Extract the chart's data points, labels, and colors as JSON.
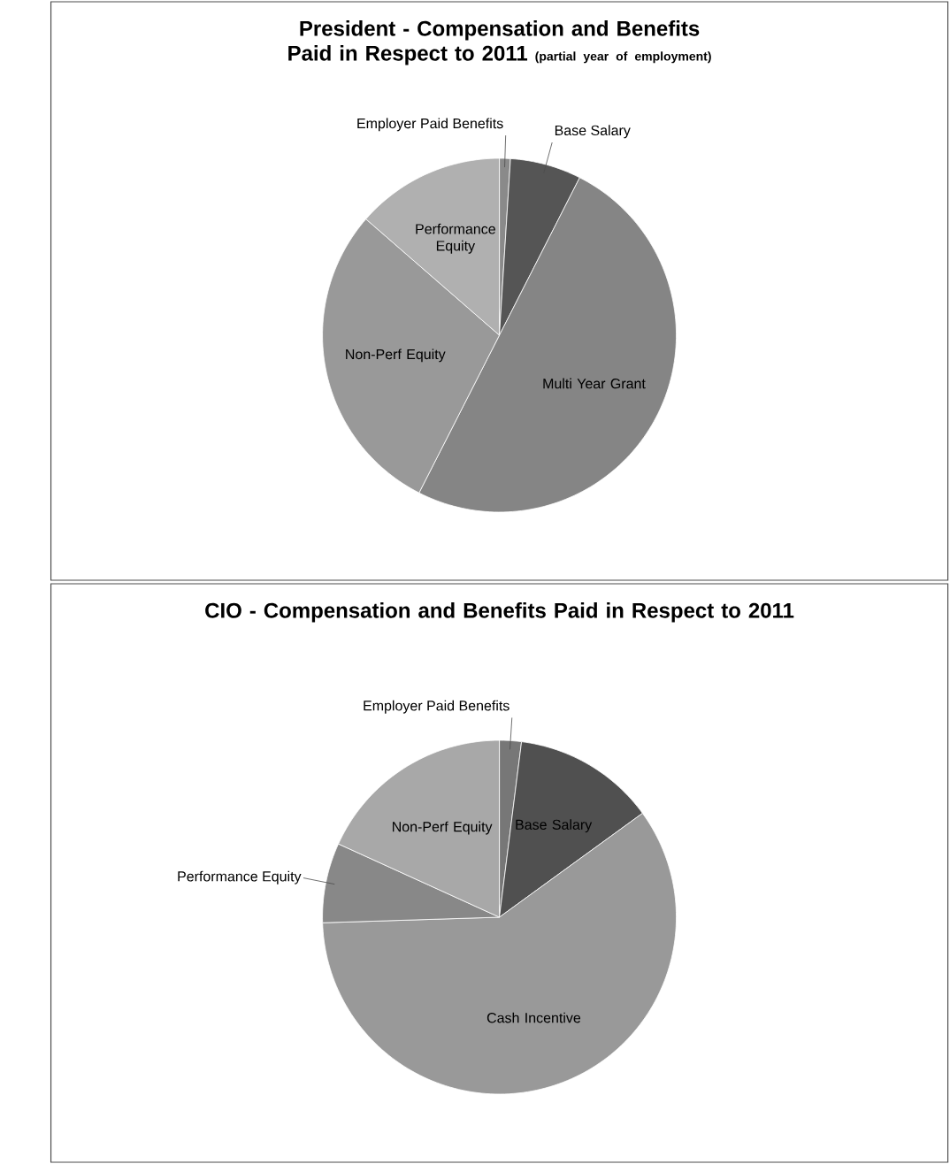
{
  "chart_data": [
    {
      "type": "pie",
      "title": "President - Compensation and Benefits Paid in Respect to 2011",
      "subtitle": "(partial year of employment)",
      "categories": [
        "Employer Paid Benefits",
        "Base Salary",
        "Multi Year Grant",
        "Non-Perf Equity",
        "Performance Equity"
      ],
      "values": [
        1,
        6.5,
        50,
        28.9,
        13.6
      ],
      "colors": [
        "#8a8a8a",
        "#555555",
        "#858585",
        "#999999",
        "#b0b0b0"
      ]
    },
    {
      "type": "pie",
      "title": "CIO - Compensation and Benefits Paid in Respect to 2011",
      "categories": [
        "Employer Paid Benefits",
        "Base Salary",
        "Cash Incentive",
        "Performance Equity",
        "Non-Perf Equity"
      ],
      "values": [
        2,
        13,
        59.5,
        7.3,
        18.2
      ],
      "colors": [
        "#777777",
        "#505050",
        "#999999",
        "#888888",
        "#a8a8a8"
      ]
    }
  ]
}
